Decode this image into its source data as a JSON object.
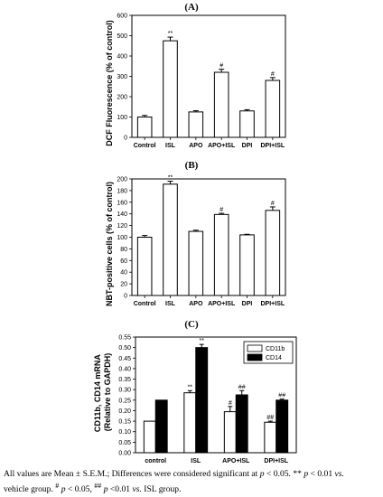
{
  "chart_data": [
    {
      "type": "bar",
      "title": "(A)",
      "ylabel": "DCF Fluorescence (% of control)",
      "ylim": [
        0,
        600
      ],
      "yticks": [
        0,
        100,
        200,
        300,
        400,
        500,
        600
      ],
      "categories": [
        "Control",
        "ISL",
        "APO",
        "APO+ISL",
        "DPI",
        "DPI+ISL"
      ],
      "values": [
        100,
        475,
        125,
        320,
        130,
        280
      ],
      "errors": [
        8,
        18,
        6,
        15,
        6,
        14
      ],
      "annotations": [
        "",
        "**",
        "",
        "#",
        "",
        "#"
      ]
    },
    {
      "type": "bar",
      "title": "(B)",
      "ylabel": "NBT-positive cells (% of control)",
      "ylim": [
        0,
        200
      ],
      "yticks": [
        0,
        20,
        40,
        60,
        80,
        100,
        120,
        140,
        160,
        180,
        200
      ],
      "categories": [
        "Control",
        "ISL",
        "APO",
        "APO+ISL",
        "DPI",
        "DPI+ISL"
      ],
      "values": [
        100,
        191,
        110,
        139,
        104,
        146
      ],
      "errors": [
        3,
        5,
        2,
        2,
        1,
        6
      ],
      "annotations": [
        "",
        "**",
        "",
        "#",
        "",
        "#"
      ]
    },
    {
      "type": "bar",
      "title": "(C)",
      "ylabel": "CD11b, CD14 mRNA (Relative to GAPDH)",
      "ylim": [
        0,
        0.55
      ],
      "yticks": [
        0.0,
        0.05,
        0.1,
        0.15,
        0.2,
        0.25,
        0.3,
        0.35,
        0.4,
        0.45,
        0.5,
        0.55
      ],
      "categories": [
        "control",
        "ISL",
        "APO+ISL",
        "DPI+ISL"
      ],
      "series": [
        {
          "name": "CD11b",
          "color": "#ffffff",
          "values": [
            0.15,
            0.285,
            0.195,
            0.145
          ],
          "errors": [
            0,
            0.01,
            0.025,
            0.005
          ],
          "annotations": [
            "",
            "**",
            "#",
            "##"
          ]
        },
        {
          "name": "CD14",
          "color": "#000000",
          "values": [
            0.25,
            0.5,
            0.275,
            0.25
          ],
          "errors": [
            0,
            0.015,
            0.02,
            0.005
          ],
          "annotations": [
            "",
            "**",
            "##",
            "##"
          ]
        }
      ],
      "legend": "top-right"
    }
  ],
  "caption": {
    "line1": "All values are Mean ± S.E.M.; Differences were considered significant at p < 0.05. ** p < 0.01 vs.",
    "line2": "vehicle group. # p < 0.05, ## p <0.01 vs. ISL group."
  }
}
